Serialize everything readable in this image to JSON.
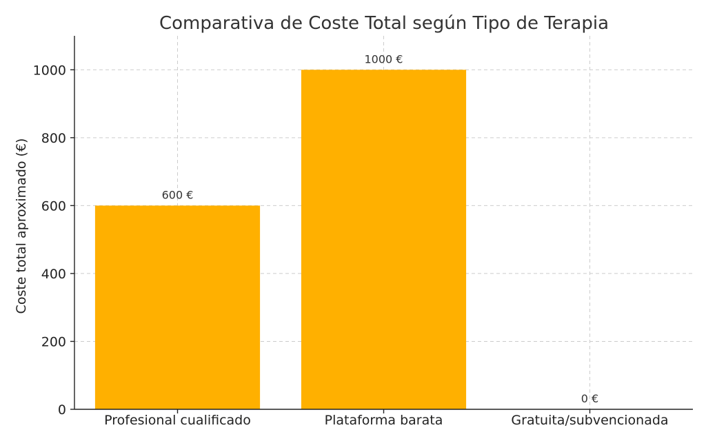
{
  "chart_data": {
    "type": "bar",
    "title": "Comparativa de Coste Total según Tipo de Terapia",
    "xlabel": "",
    "ylabel": "Coste total aproximado (€)",
    "categories": [
      "Profesional cualificado",
      "Plataforma barata",
      "Gratuita/subvencionada"
    ],
    "values": [
      600,
      1000,
      0
    ],
    "data_labels": [
      "600 €",
      "1000 €",
      "0 €"
    ],
    "ylim": [
      0,
      1100
    ],
    "yticks": [
      0,
      200,
      400,
      600,
      800,
      1000
    ],
    "bar_color": "#FFB000",
    "grid": true
  }
}
